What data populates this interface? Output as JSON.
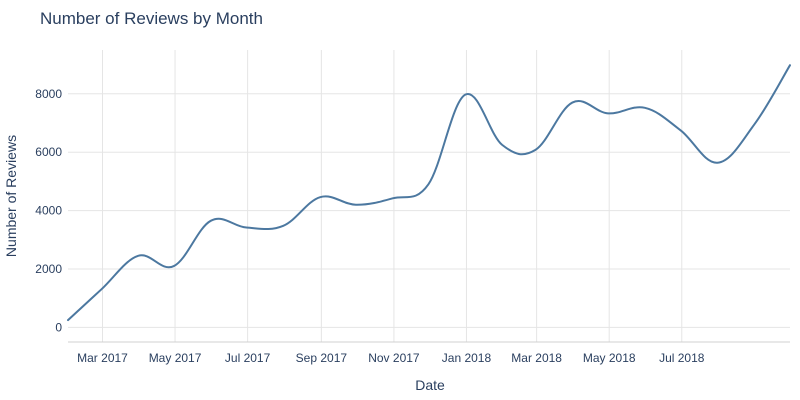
{
  "chart_data": {
    "type": "line",
    "title": "Number of Reviews by Month",
    "xlabel": "Date",
    "ylabel": "Number of Reviews",
    "x": [
      "2017-01-31",
      "2017-02-28",
      "2017-03-31",
      "2017-04-30",
      "2017-05-31",
      "2017-06-30",
      "2017-07-31",
      "2017-08-31",
      "2017-09-30",
      "2017-10-31",
      "2017-11-30",
      "2017-12-31",
      "2018-01-31",
      "2018-02-28",
      "2018-03-31",
      "2018-04-30",
      "2018-05-31",
      "2018-06-30",
      "2018-07-31",
      "2018-08-31",
      "2018-09-30"
    ],
    "series": [
      {
        "values": [
          250,
          1300,
          2450,
          2100,
          3650,
          3420,
          3480,
          4460,
          4200,
          4420,
          4900,
          7970,
          6250,
          6080,
          7700,
          7330,
          7520,
          6750,
          5640,
          6950,
          8980
        ]
      }
    ],
    "x_ticks": [
      {
        "date": "2017-03-01",
        "label": "Mar 2017"
      },
      {
        "date": "2017-05-01",
        "label": "May 2017"
      },
      {
        "date": "2017-07-01",
        "label": "Jul 2017"
      },
      {
        "date": "2017-09-01",
        "label": "Sep 2017"
      },
      {
        "date": "2017-11-01",
        "label": "Nov 2017"
      },
      {
        "date": "2018-01-01",
        "label": "Jan 2018"
      },
      {
        "date": "2018-03-01",
        "label": "Mar 2018"
      },
      {
        "date": "2018-05-01",
        "label": "May 2018"
      },
      {
        "date": "2018-07-01",
        "label": "Jul 2018"
      }
    ],
    "y_ticks": [
      0,
      2000,
      4000,
      6000,
      8000
    ],
    "xlim": [
      "2017-01-31",
      "2018-09-30"
    ],
    "ylim": [
      -500,
      9500
    ],
    "grid": true,
    "line_color": "#4c78a0"
  }
}
